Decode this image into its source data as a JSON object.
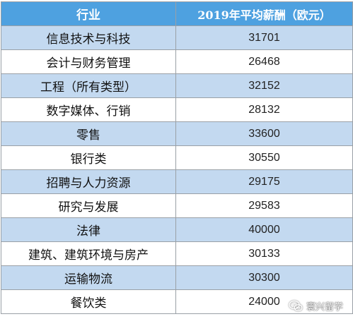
{
  "table": {
    "headers": {
      "industry": "行业",
      "salary": "2019年平均薪酬（欧元）"
    },
    "rows": [
      {
        "industry": "信息技术与科技",
        "salary": "31701"
      },
      {
        "industry": "会计与财务管理",
        "salary": "26468"
      },
      {
        "industry": "工程（所有类型）",
        "salary": "32152"
      },
      {
        "industry": "数字媒体、行销",
        "salary": "28132"
      },
      {
        "industry": "零售",
        "salary": "33600"
      },
      {
        "industry": "银行类",
        "salary": "30550"
      },
      {
        "industry": "招聘与人力资源",
        "salary": "29175"
      },
      {
        "industry": "研究与发展",
        "salary": "29583"
      },
      {
        "industry": "法律",
        "salary": "40000"
      },
      {
        "industry": "建筑、建筑环境与房产",
        "salary": "30133"
      },
      {
        "industry": "运输物流",
        "salary": "30300"
      },
      {
        "industry": "餐饮类",
        "salary": "24000"
      }
    ]
  },
  "watermark": {
    "text": "寰兴留学",
    "icon": "wechat-icon"
  },
  "colors": {
    "header_bg": "#4ea1e0",
    "shaded_row_bg": "#c3d9f0",
    "plain_row_bg": "#ffffff",
    "border": "#9aa0a6"
  }
}
